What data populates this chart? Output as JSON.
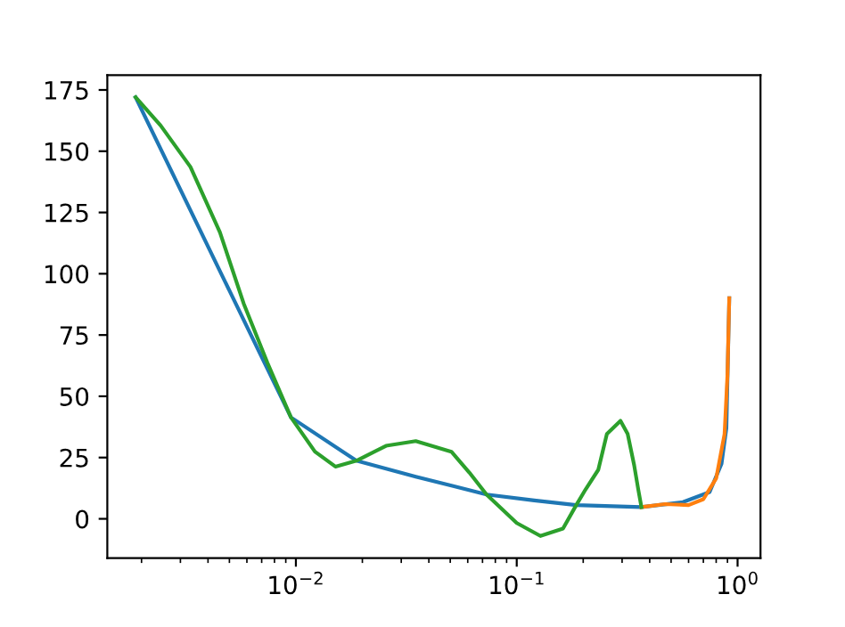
{
  "chart_data": {
    "type": "line",
    "log": "x",
    "grid": false,
    "marker": "none",
    "line_style": "solid",
    "xlim": [
      0.0014,
      1.27
    ],
    "ylim": [
      -16,
      181
    ],
    "xticks": [
      {
        "value": 0.01,
        "label": "10$^{−2}$"
      },
      {
        "value": 0.1,
        "label": "10$^{−1}$"
      },
      {
        "value": 1,
        "label": "10$^{0}$"
      }
    ],
    "yticks": [
      0,
      25,
      50,
      75,
      100,
      125,
      150,
      175
    ],
    "series": [
      {
        "color": "#1f77b4",
        "x": [
          0.00188,
          0.0095,
          0.0188,
          0.0349,
          0.073,
          0.12,
          0.186,
          0.367,
          0.566,
          0.747,
          0.846,
          0.89,
          0.917
        ],
        "values": [
          172,
          41.4,
          23.7,
          17.2,
          9.9,
          7.5,
          5.6,
          4.8,
          6.8,
          10.9,
          22.5,
          37,
          90
        ]
      },
      {
        "color": "#ff7f0e",
        "x": [
          0.367,
          0.47,
          0.6,
          0.7,
          0.8,
          0.873,
          0.9,
          0.917
        ],
        "values": [
          4.8,
          6,
          5.6,
          8,
          16.5,
          34.6,
          58.8,
          90
        ]
      },
      {
        "color": "#2ca02c",
        "x": [
          0.00188,
          0.00244,
          0.00333,
          0.00453,
          0.0058,
          0.00743,
          0.0095,
          0.0122,
          0.0151,
          0.0188,
          0.0256,
          0.0349,
          0.0506,
          0.061,
          0.073,
          0.1,
          0.128,
          0.162,
          0.186,
          0.205,
          0.234,
          0.256,
          0.295,
          0.318,
          0.34,
          0.355,
          0.367
        ],
        "values": [
          172,
          160.5,
          143.6,
          116.9,
          87.9,
          63.7,
          41.4,
          27.4,
          21.3,
          23.7,
          29.8,
          31.7,
          27.4,
          18.9,
          9.9,
          -1.7,
          -7,
          -4,
          5.6,
          12,
          20,
          34.6,
          40,
          34.6,
          22,
          12,
          4.8
        ]
      }
    ]
  }
}
